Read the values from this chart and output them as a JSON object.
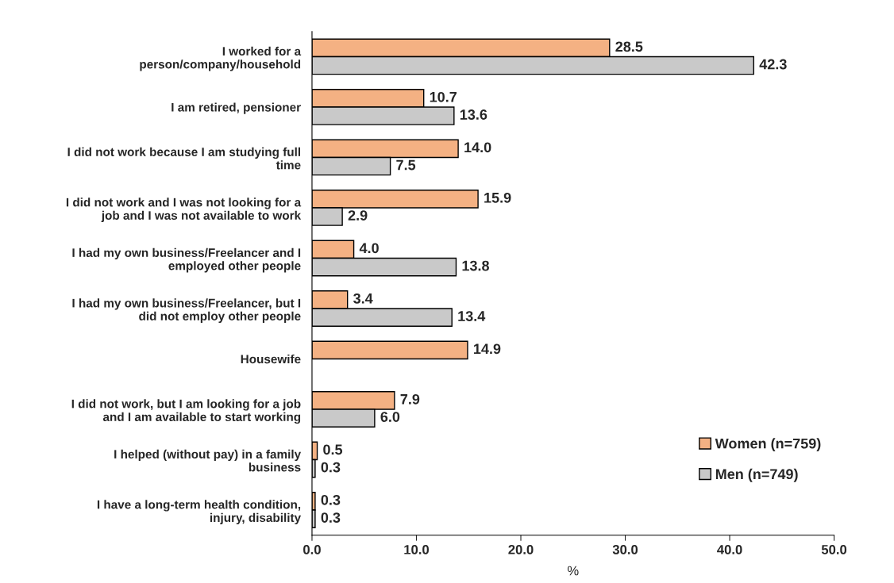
{
  "chart_data": {
    "type": "bar",
    "orientation": "horizontal",
    "categories": [
      "I worked for a\nperson/company/household",
      "I am retired, pensioner",
      "I did not work because I am studying full\ntime",
      "I did not work and I was not looking for a\njob and I was not available to work",
      "I had my own business/Freelancer and I\nemployed other people",
      "I had my own business/Freelancer, but I\ndid not employ other people",
      "Housewife",
      "I did not work, but I am looking for a job\nand I am available to start working",
      "I helped (without pay) in a family\nbusiness",
      "I have a long-term health condition,\ninjury, disability"
    ],
    "series": [
      {
        "name": "Women (n=759)",
        "color": "#f4b183",
        "values": [
          28.5,
          10.7,
          14.0,
          15.9,
          4.0,
          3.4,
          14.9,
          7.9,
          0.5,
          0.3
        ],
        "value_labels": [
          "28.5",
          "10.7",
          "14.0",
          "15.9",
          "4.0",
          "3.4",
          "14.9",
          "7.9",
          "0.5",
          "0.3"
        ]
      },
      {
        "name": "Men (n=749)",
        "color": "#c9c9c9",
        "values": [
          42.3,
          13.6,
          7.5,
          2.9,
          13.8,
          13.4,
          null,
          6.0,
          0.3,
          0.3
        ],
        "value_labels": [
          "42.3",
          "13.6",
          "7.5",
          "2.9",
          "13.8",
          "13.4",
          null,
          "6.0",
          "0.3",
          "0.3"
        ]
      }
    ],
    "xlabel": "%",
    "xlim": [
      0,
      50
    ],
    "xticks": [
      {
        "value": 0,
        "label": "0.0"
      },
      {
        "value": 10,
        "label": "10.0"
      },
      {
        "value": 20,
        "label": "20.0"
      },
      {
        "value": 30,
        "label": "30.0"
      },
      {
        "value": 40,
        "label": "40.0"
      },
      {
        "value": 50,
        "label": "50.0"
      }
    ],
    "grid": false,
    "legend": "bottom right"
  }
}
